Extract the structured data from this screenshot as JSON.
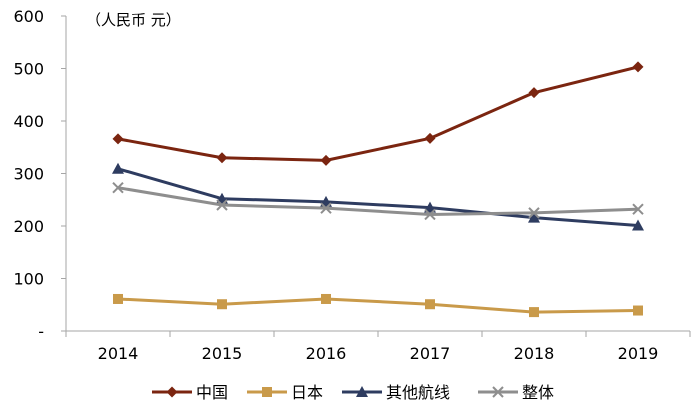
{
  "chart_data": {
    "type": "line",
    "unit_label": "（人民币  元）",
    "categories": [
      "2014",
      "2015",
      "2016",
      "2017",
      "2018",
      "2019"
    ],
    "y_ticks": [
      "-",
      "100",
      "200",
      "300",
      "400",
      "500",
      "600"
    ],
    "ylim": [
      0,
      600
    ],
    "grid": false,
    "legend_position": "bottom",
    "series": [
      {
        "name": "中国",
        "values": [
          366,
          330,
          325,
          367,
          454,
          503
        ],
        "color": "#7B2510",
        "marker": "diamond"
      },
      {
        "name": "日本",
        "values": [
          61,
          51,
          61,
          51,
          36,
          39
        ],
        "color": "#C99A4A",
        "marker": "square"
      },
      {
        "name": "其他航线",
        "values": [
          309,
          252,
          246,
          235,
          216,
          201
        ],
        "color": "#2E3C60",
        "marker": "triangle"
      },
      {
        "name": "整体",
        "values": [
          273,
          240,
          234,
          222,
          225,
          232
        ],
        "color": "#8E8E8E",
        "marker": "x"
      }
    ]
  }
}
